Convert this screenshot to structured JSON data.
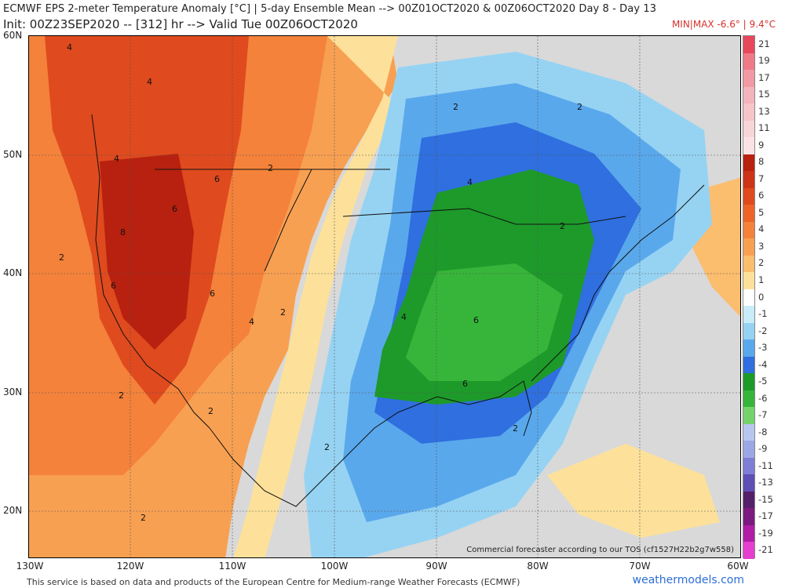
{
  "header": {
    "line1": "ECMWF EPS 2-meter Temperature Anomaly [°C] | 5-day Ensemble Mean --> 00Z01OCT2020 & 00Z06OCT2020  Day 8 - Day 13",
    "line2": "Init: 00Z23SEP2020 -- [312] hr --> Valid Tue 00Z06OCT2020",
    "minmax": "MIN|MAX -6.6° | 9.4°C"
  },
  "map": {
    "tos_note": "Commercial forecaster according to our TOS (cf1527H22b2g7w558)",
    "lat_labels": [
      "60N",
      "50N",
      "40N",
      "30N",
      "20N"
    ],
    "lon_labels": [
      "130W",
      "120W",
      "110W",
      "100W",
      "90W",
      "80W",
      "70W",
      "60W"
    ],
    "contour_labels": [
      "4",
      "4",
      "6",
      "4",
      "6",
      "8",
      "6",
      "6",
      "4",
      "2",
      "2",
      "2",
      "2",
      "2",
      "2",
      "2",
      "2",
      "4",
      "6",
      "6",
      "4",
      "2",
      "2",
      "2"
    ]
  },
  "colorbar": {
    "labels": [
      "21",
      "19",
      "17",
      "15",
      "13",
      "11",
      "9",
      "8",
      "7",
      "6",
      "5",
      "4",
      "3",
      "2",
      "1",
      "0",
      "-1",
      "-2",
      "-3",
      "-4",
      "-5",
      "-6",
      "-7",
      "-8",
      "-9",
      "-11",
      "-13",
      "-15",
      "-17",
      "-19",
      "-21"
    ],
    "colors": [
      "#e8485c",
      "#ee7a88",
      "#f29aa4",
      "#f4b4bb",
      "#f6c5c9",
      "#f8d5d8",
      "#fbe3e5",
      "#b8210f",
      "#cd3417",
      "#df4a1e",
      "#ee6428",
      "#f4823a",
      "#f8a052",
      "#fbbd6e",
      "#fde19a",
      "#ffffff",
      "#c8ecf8",
      "#96d3f3",
      "#5aa8ec",
      "#2f6fdf",
      "#1d9a2a",
      "#37b53a",
      "#74d36b",
      "#b8c6ef",
      "#9da7e5",
      "#7e7ed6",
      "#5e4fb4",
      "#55206a",
      "#7c1a80",
      "#b01ea6",
      "#e43fcf"
    ]
  },
  "footer": {
    "credit": "This service is based on data and products of the European Centre for Medium-range Weather Forecasts (ECMWF)",
    "brand": "weathermodels.com"
  }
}
